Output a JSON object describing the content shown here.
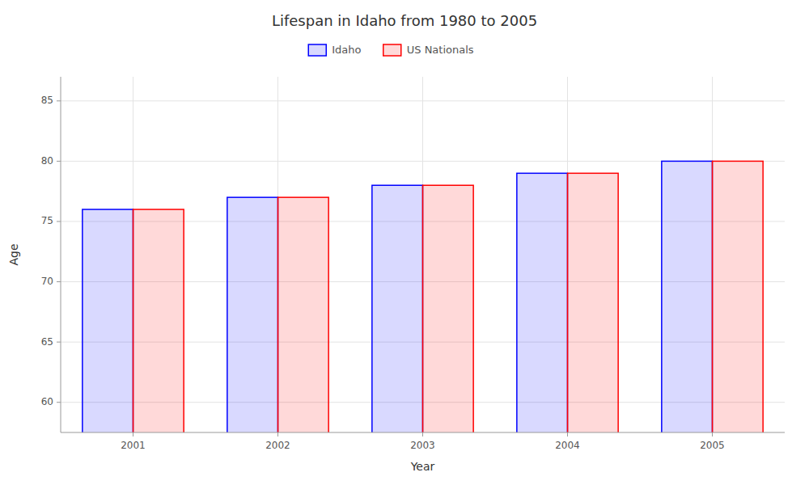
{
  "chart_data": {
    "type": "bar",
    "title": "Lifespan in Idaho from 1980 to 2005",
    "x_label": "Year",
    "y_label": "Age",
    "categories": [
      "2001",
      "2002",
      "2003",
      "2004",
      "2005"
    ],
    "series": [
      {
        "name": "Idaho",
        "color": "#0000ff",
        "values": [
          76,
          77,
          78,
          79,
          80
        ]
      },
      {
        "name": "US Nationals",
        "color": "#ff0000",
        "values": [
          76,
          77,
          78,
          79,
          80
        ]
      }
    ],
    "ylim": [
      57.5,
      87
    ],
    "yticks": [
      60,
      65,
      70,
      75,
      80,
      85
    ],
    "grid": true,
    "legend": "top"
  }
}
